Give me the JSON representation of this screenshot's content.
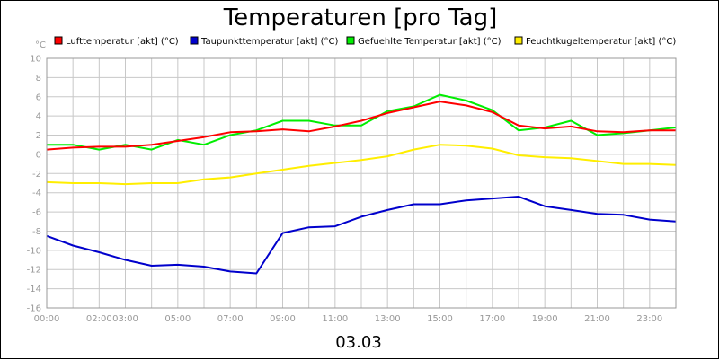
{
  "chart_data": {
    "type": "line",
    "title": "Temperaturen [pro Tag]",
    "ylabel": "°C",
    "xlabel": "03.03",
    "ylim": [
      -16,
      10
    ],
    "xlim": [
      0,
      24
    ],
    "grid": true,
    "legend_position": "top",
    "y_ticks": [
      "10",
      "8",
      "6",
      "4",
      "2",
      "0",
      "-2",
      "-4",
      "-6",
      "-8",
      "-10",
      "-12",
      "-14",
      "-16"
    ],
    "x_ticks": [
      {
        "label": "00:00",
        "h": 0
      },
      {
        "label": "02:00",
        "h": 2
      },
      {
        "label": "03:00",
        "h": 3
      },
      {
        "label": "05:00",
        "h": 5
      },
      {
        "label": "07:00",
        "h": 7
      },
      {
        "label": "09:00",
        "h": 9
      },
      {
        "label": "11:00",
        "h": 11
      },
      {
        "label": "13:00",
        "h": 13
      },
      {
        "label": "15:00",
        "h": 15
      },
      {
        "label": "17:00",
        "h": 17
      },
      {
        "label": "19:00",
        "h": 19
      },
      {
        "label": "21:00",
        "h": 21
      },
      {
        "label": "23:00",
        "h": 23
      }
    ],
    "x": [
      0,
      1,
      2,
      3,
      4,
      5,
      6,
      7,
      8,
      9,
      10,
      11,
      12,
      13,
      14,
      15,
      16,
      17,
      18,
      19,
      20,
      21,
      22,
      23,
      24
    ],
    "series": [
      {
        "name": "Lufttemperatur [akt] (°C)",
        "color": "#ff0000",
        "values": [
          0.5,
          0.7,
          0.8,
          0.8,
          1.0,
          1.4,
          1.8,
          2.3,
          2.4,
          2.6,
          2.4,
          2.9,
          3.5,
          4.3,
          4.9,
          5.5,
          5.1,
          4.4,
          3.0,
          2.7,
          2.9,
          2.4,
          2.3,
          2.5,
          2.5
        ]
      },
      {
        "name": "Taupunkttemperatur [akt] (°C)",
        "color": "#0000cc",
        "values": [
          -8.5,
          -9.5,
          -10.2,
          -11.0,
          -11.6,
          -11.5,
          -11.7,
          -12.2,
          -12.4,
          -8.2,
          -7.6,
          -7.5,
          -6.5,
          -5.8,
          -5.2,
          -5.2,
          -4.8,
          -4.6,
          -4.4,
          -5.4,
          -5.8,
          -6.2,
          -6.3,
          -6.8,
          -7.0
        ]
      },
      {
        "name": "Gefuehlte Temperatur [akt] (°C)",
        "color": "#00ee00",
        "values": [
          1.0,
          1.0,
          0.5,
          1.0,
          0.5,
          1.5,
          1.0,
          2.0,
          2.5,
          3.5,
          3.5,
          3.0,
          3.0,
          4.5,
          5.0,
          6.2,
          5.6,
          4.6,
          2.5,
          2.8,
          3.5,
          2.0,
          2.2,
          2.5,
          2.8
        ]
      },
      {
        "name": "Feuchtkugeltemperatur [akt] (°C)",
        "color": "#ffee00",
        "values": [
          -2.9,
          -3.0,
          -3.0,
          -3.1,
          -3.0,
          -3.0,
          -2.6,
          -2.4,
          -2.0,
          -1.6,
          -1.2,
          -0.9,
          -0.6,
          -0.2,
          0.5,
          1.0,
          0.9,
          0.6,
          -0.1,
          -0.3,
          -0.4,
          -0.7,
          -1.0,
          -1.0,
          -1.1
        ]
      }
    ]
  }
}
